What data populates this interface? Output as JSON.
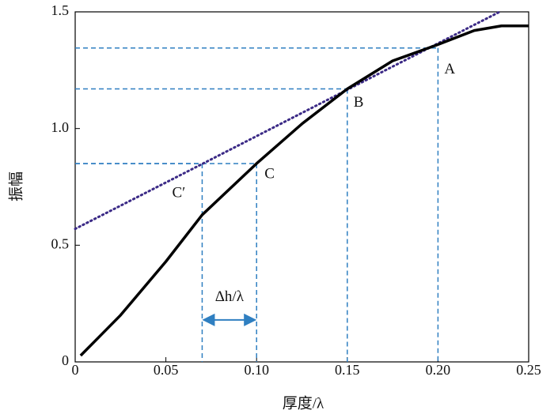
{
  "chart_data": {
    "type": "line",
    "xlabel": "厚度/λ",
    "ylabel": "振幅",
    "x": [
      0.003,
      0.025,
      0.05,
      0.07,
      0.1,
      0.125,
      0.15,
      0.175,
      0.2,
      0.22,
      0.235,
      0.25
    ],
    "values": [
      0.027,
      0.2,
      0.43,
      0.63,
      0.85,
      1.02,
      1.17,
      1.29,
      1.36,
      1.42,
      1.44,
      1.44
    ],
    "color": "#000000",
    "tangent": {
      "x": [
        0,
        0.234
      ],
      "values": [
        0.57,
        1.5
      ],
      "color": "#3b2a86"
    },
    "guide_color": "#2f7fc1",
    "points": [
      {
        "label": "A",
        "x": 0.2,
        "y": 1.345
      },
      {
        "label": "B",
        "x": 0.15,
        "y": 1.17
      },
      {
        "label": "C",
        "x": 0.1,
        "y": 0.85
      },
      {
        "label": "C′",
        "x": 0.07,
        "y": 0.85
      }
    ],
    "span": {
      "label": "Δh/λ",
      "x": [
        0.07,
        0.1
      ],
      "y": 0.18
    },
    "xlim": [
      0,
      0.25
    ],
    "ylim": [
      0,
      1.5
    ],
    "xticks": [
      0,
      0.05,
      {
        "value": 0.1,
        "label": "0.10"
      },
      0.15,
      {
        "value": 0.2,
        "label": "0.20"
      },
      0.25
    ],
    "yticks": [
      0,
      0.5,
      {
        "value": 1.0,
        "label": "1.0"
      },
      1.5
    ]
  }
}
